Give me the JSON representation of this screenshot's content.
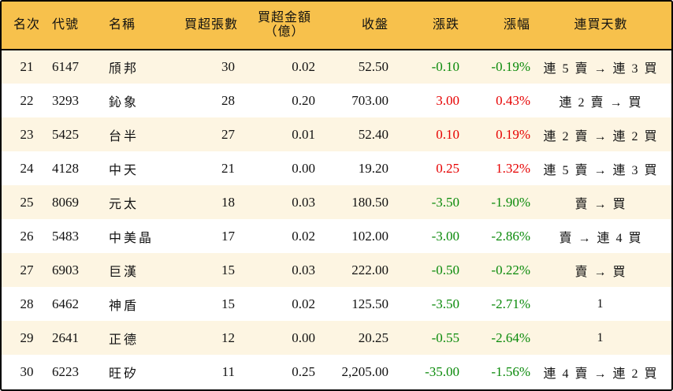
{
  "colors": {
    "header_bg": "#f7c14c",
    "row_alt_bg": "#fdf5e2",
    "up": "#e60000",
    "down": "#0a8a0a"
  },
  "headers": {
    "rank": "名次",
    "code": "代號",
    "name": "名稱",
    "net_buy_lots": "買超張數",
    "net_buy_amount_l1": "買超金額",
    "net_buy_amount_l2": "（億）",
    "close": "收盤",
    "change": "漲跌",
    "change_pct": "漲幅",
    "streak": "連買天數"
  },
  "rows": [
    {
      "rank": "21",
      "code": "6147",
      "name": "頎邦",
      "lots": "30",
      "amount": "0.02",
      "close": "52.50",
      "change": "-0.10",
      "pct": "-0.19%",
      "dir": "down",
      "streak": "連 5 賣 → 連 3 買"
    },
    {
      "rank": "22",
      "code": "3293",
      "name": "鈊象",
      "lots": "28",
      "amount": "0.20",
      "close": "703.00",
      "change": "3.00",
      "pct": "0.43%",
      "dir": "up",
      "streak": "連 2 賣 → 買"
    },
    {
      "rank": "23",
      "code": "5425",
      "name": "台半",
      "lots": "27",
      "amount": "0.01",
      "close": "52.40",
      "change": "0.10",
      "pct": "0.19%",
      "dir": "up",
      "streak": "連 2 賣 → 連 2 買"
    },
    {
      "rank": "24",
      "code": "4128",
      "name": "中天",
      "lots": "21",
      "amount": "0.00",
      "close": "19.20",
      "change": "0.25",
      "pct": "1.32%",
      "dir": "up",
      "streak": "連 5 賣 → 連 3 買"
    },
    {
      "rank": "25",
      "code": "8069",
      "name": "元太",
      "lots": "18",
      "amount": "0.03",
      "close": "180.50",
      "change": "-3.50",
      "pct": "-1.90%",
      "dir": "down",
      "streak": "賣 → 買"
    },
    {
      "rank": "26",
      "code": "5483",
      "name": "中美晶",
      "lots": "17",
      "amount": "0.02",
      "close": "102.00",
      "change": "-3.00",
      "pct": "-2.86%",
      "dir": "down",
      "streak": "賣 → 連 4 買"
    },
    {
      "rank": "27",
      "code": "6903",
      "name": "巨漢",
      "lots": "15",
      "amount": "0.03",
      "close": "222.00",
      "change": "-0.50",
      "pct": "-0.22%",
      "dir": "down",
      "streak": "賣 → 買"
    },
    {
      "rank": "28",
      "code": "6462",
      "name": "神盾",
      "lots": "15",
      "amount": "0.02",
      "close": "125.50",
      "change": "-3.50",
      "pct": "-2.71%",
      "dir": "down",
      "streak": "1"
    },
    {
      "rank": "29",
      "code": "2641",
      "name": "正德",
      "lots": "12",
      "amount": "0.00",
      "close": "20.25",
      "change": "-0.55",
      "pct": "-2.64%",
      "dir": "down",
      "streak": "1"
    },
    {
      "rank": "30",
      "code": "6223",
      "name": "旺矽",
      "lots": "11",
      "amount": "0.25",
      "close": "2,205.00",
      "change": "-35.00",
      "pct": "-1.56%",
      "dir": "down",
      "streak": "連 4 賣 → 連 2 買"
    }
  ]
}
